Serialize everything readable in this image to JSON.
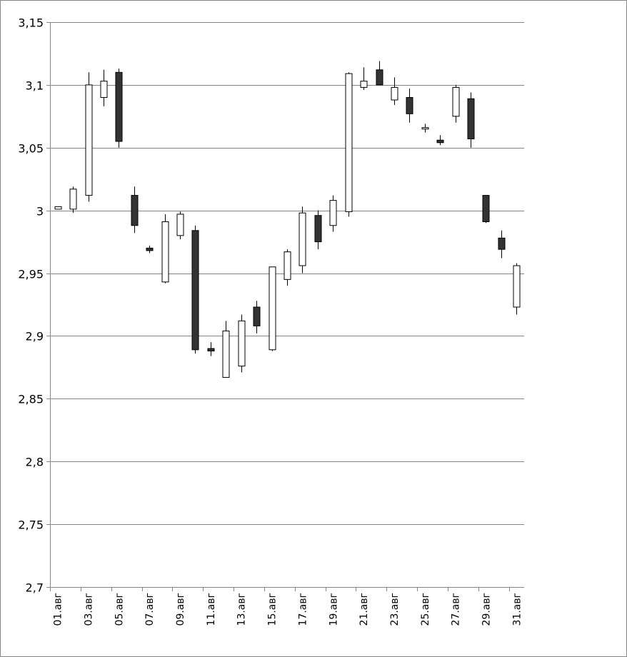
{
  "chart_data": {
    "type": "candlestick",
    "title": "",
    "xlabel": "",
    "ylabel": "",
    "ylim": [
      2.7,
      3.15
    ],
    "y_ticks": [
      2.7,
      2.75,
      2.8,
      2.85,
      2.9,
      2.95,
      3.0,
      3.05,
      3.1,
      3.15
    ],
    "y_tick_labels": [
      "2,7",
      "2,75",
      "2,8",
      "2,85",
      "2,9",
      "2,95",
      "3",
      "3,05",
      "3,1",
      "3,15"
    ],
    "grid": "horizontal",
    "legend": "none",
    "up_color": "#ffffff",
    "down_color": "#333333",
    "categories": [
      "01.авг",
      "02.авг",
      "03.авг",
      "04.авг",
      "05.авг",
      "06.авг",
      "07.авг",
      "08.авг",
      "09.авг",
      "10.авг",
      "11.авг",
      "12.авг",
      "13.авг",
      "14.авг",
      "15.авг",
      "16.авг",
      "17.авг",
      "18.авг",
      "19.авг",
      "20.авг",
      "21.авг",
      "22.авг",
      "23.авг",
      "24.авг",
      "25.авг",
      "26.авг",
      "27.авг",
      "28.авг",
      "29.авг",
      "30.авг",
      "31.авг"
    ],
    "x_tick_labels": [
      "01.авг",
      "03.авг",
      "05.авг",
      "07.авг",
      "09.авг",
      "11.авг",
      "13.авг",
      "15.авг",
      "17.авг",
      "19.авг",
      "21.авг",
      "23.авг",
      "25.авг",
      "27.авг",
      "29.авг",
      "31.авг"
    ],
    "candles": [
      {
        "date": "01.авг",
        "open": 3.001,
        "high": 3.003,
        "low": 3.001,
        "close": 3.003
      },
      {
        "date": "02.авг",
        "open": 3.001,
        "high": 3.019,
        "low": 2.998,
        "close": 3.017
      },
      {
        "date": "03.авг",
        "open": 3.012,
        "high": 3.11,
        "low": 3.007,
        "close": 3.1
      },
      {
        "date": "04.авг",
        "open": 3.09,
        "high": 3.112,
        "low": 3.083,
        "close": 3.103
      },
      {
        "date": "05.авг",
        "open": 3.11,
        "high": 3.113,
        "low": 3.05,
        "close": 3.055
      },
      {
        "date": "06.авг",
        "open": 3.012,
        "high": 3.019,
        "low": 2.982,
        "close": 2.988
      },
      {
        "date": "07.авг",
        "open": 2.97,
        "high": 2.972,
        "low": 2.966,
        "close": 2.968
      },
      {
        "date": "08.авг",
        "open": 2.943,
        "high": 2.997,
        "low": 2.942,
        "close": 2.991
      },
      {
        "date": "09.авг",
        "open": 2.98,
        "high": 2.999,
        "low": 2.977,
        "close": 2.997
      },
      {
        "date": "10.авг",
        "open": 2.984,
        "high": 2.988,
        "low": 2.886,
        "close": 2.889
      },
      {
        "date": "11.авг",
        "open": 2.89,
        "high": 2.895,
        "low": 2.884,
        "close": 2.888
      },
      {
        "date": "12.авг",
        "open": 2.867,
        "high": 2.912,
        "low": 2.867,
        "close": 2.904
      },
      {
        "date": "13.авг",
        "open": 2.876,
        "high": 2.917,
        "low": 2.871,
        "close": 2.912
      },
      {
        "date": "14.авг",
        "open": 2.923,
        "high": 2.928,
        "low": 2.902,
        "close": 2.908
      },
      {
        "date": "15.авг",
        "open": 2.889,
        "high": 2.955,
        "low": 2.888,
        "close": 2.955
      },
      {
        "date": "16.авг",
        "open": 2.945,
        "high": 2.969,
        "low": 2.94,
        "close": 2.967
      },
      {
        "date": "17.авг",
        "open": 2.956,
        "high": 3.003,
        "low": 2.95,
        "close": 2.998
      },
      {
        "date": "18.авг",
        "open": 2.996,
        "high": 3.0,
        "low": 2.969,
        "close": 2.975
      },
      {
        "date": "19.авг",
        "open": 2.988,
        "high": 3.012,
        "low": 2.983,
        "close": 3.008
      },
      {
        "date": "20.авг",
        "open": 2.999,
        "high": 3.11,
        "low": 2.995,
        "close": 3.109
      },
      {
        "date": "21.авг",
        "open": 3.098,
        "high": 3.114,
        "low": 3.096,
        "close": 3.103
      },
      {
        "date": "22.авг",
        "open": 3.112,
        "high": 3.119,
        "low": 3.1,
        "close": 3.1
      },
      {
        "date": "23.авг",
        "open": 3.088,
        "high": 3.106,
        "low": 3.084,
        "close": 3.098
      },
      {
        "date": "24.авг",
        "open": 3.09,
        "high": 3.097,
        "low": 3.07,
        "close": 3.077
      },
      {
        "date": "25.авг",
        "open": 3.066,
        "high": 3.069,
        "low": 3.062,
        "close": 3.066
      },
      {
        "date": "26.авг",
        "open": 3.056,
        "high": 3.06,
        "low": 3.052,
        "close": 3.054
      },
      {
        "date": "27.авг",
        "open": 3.075,
        "high": 3.1,
        "low": 3.07,
        "close": 3.098
      },
      {
        "date": "28.авг",
        "open": 3.089,
        "high": 3.094,
        "low": 3.05,
        "close": 3.057
      },
      {
        "date": "29.авг",
        "open": 3.012,
        "high": 3.012,
        "low": 2.99,
        "close": 2.991
      },
      {
        "date": "30.авг",
        "open": 2.978,
        "high": 2.984,
        "low": 2.962,
        "close": 2.969
      },
      {
        "date": "31.авг",
        "open": 2.923,
        "high": 2.958,
        "low": 2.917,
        "close": 2.956
      }
    ]
  }
}
